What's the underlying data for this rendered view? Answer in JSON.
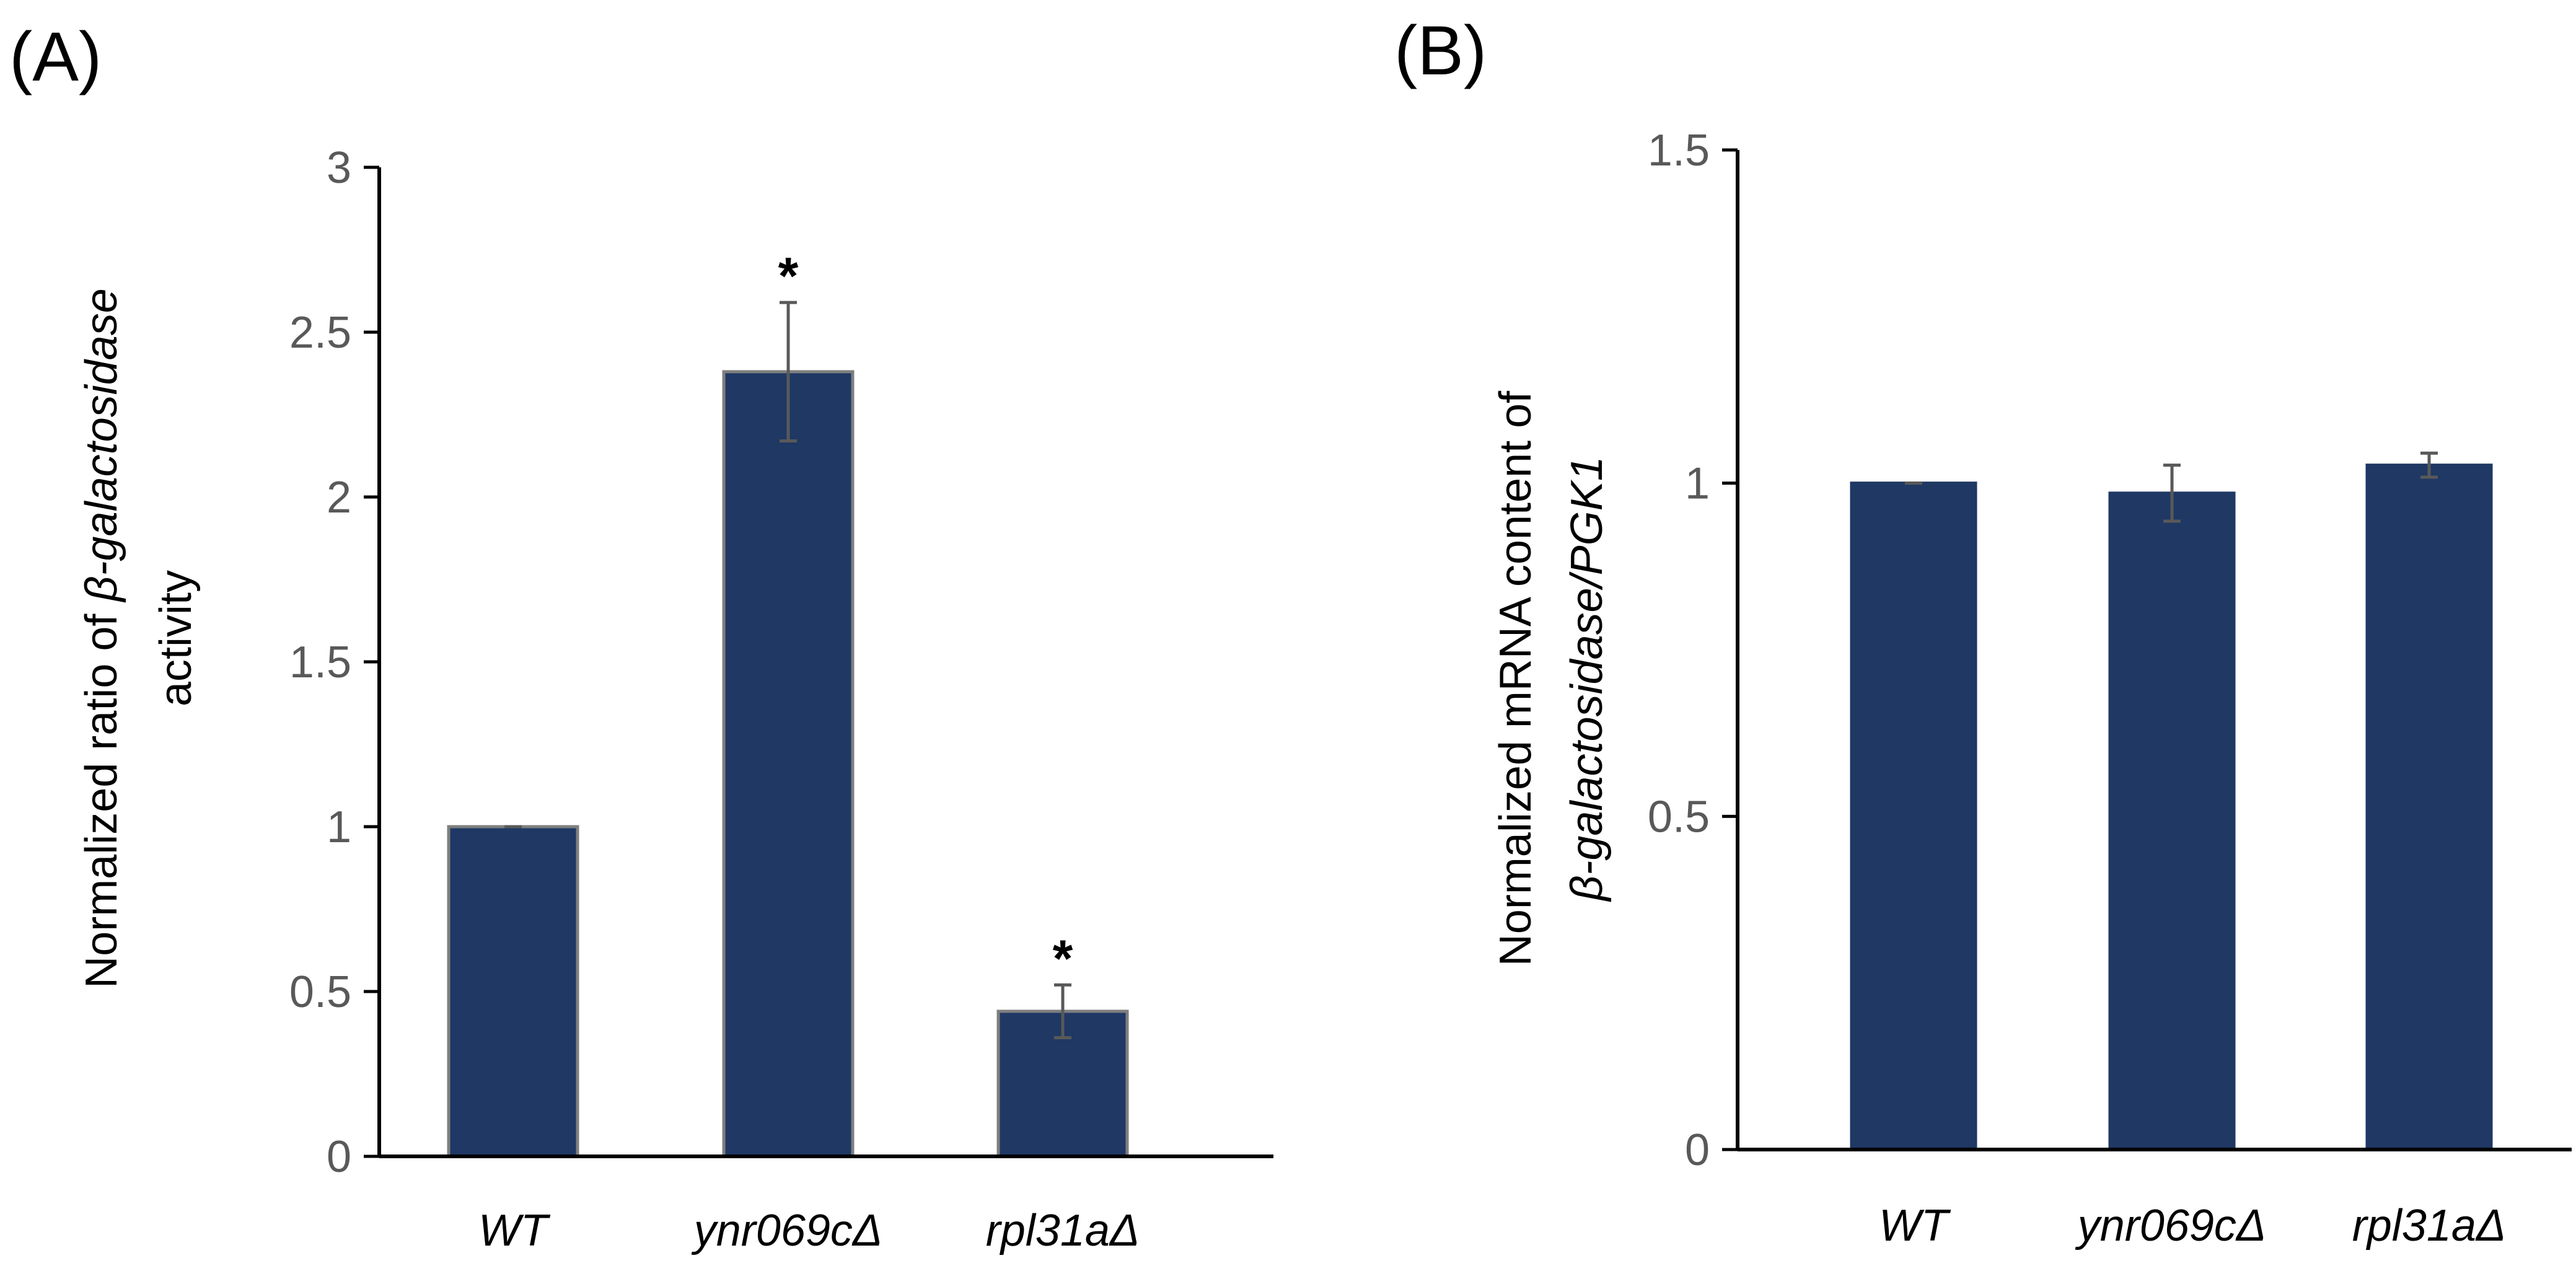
{
  "chart_data": [
    {
      "panel_label": "(A)",
      "type": "bar",
      "categories": [
        "WT",
        "ynr069cΔ",
        "rpl31aΔ"
      ],
      "values": [
        1.0,
        2.38,
        0.44
      ],
      "errors": [
        0.0,
        0.21,
        0.08
      ],
      "significance": [
        "",
        "*",
        "*"
      ],
      "ylim": [
        0,
        3
      ],
      "yticks": [
        0,
        0.5,
        1,
        1.5,
        2,
        2.5,
        3
      ],
      "ytick_labels": [
        "0",
        "0.5",
        "1",
        "1.5",
        "2",
        "2.5",
        "3"
      ],
      "ylabel_line1_plain": "Normalized ratio of ",
      "ylabel_line1_italic": "β-galactosidase",
      "ylabel_line2": "activity",
      "bar_color": "#1f3864",
      "bar_edge_color": "#7f7f7f"
    },
    {
      "panel_label": "(B)",
      "type": "bar",
      "categories": [
        "WT",
        "ynr069cΔ",
        "rpl31aΔ"
      ],
      "values": [
        1.0,
        0.985,
        1.027
      ],
      "errors": [
        0.0,
        0.042,
        0.018
      ],
      "significance": [
        "",
        "",
        ""
      ],
      "ylim": [
        0,
        1.5
      ],
      "yticks": [
        0,
        0.5,
        1,
        1.5
      ],
      "ytick_labels": [
        "0",
        "0.5",
        "1",
        "1.5"
      ],
      "ylabel_line1_plain": "Normalized mRNA content of",
      "ylabel_line2_italic": "β-galactosidase/PGK1",
      "bar_color": "#1f3864",
      "bar_edge_color": "#1f3864"
    }
  ]
}
